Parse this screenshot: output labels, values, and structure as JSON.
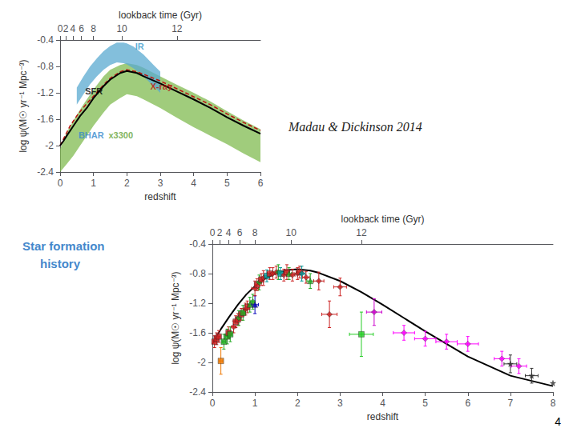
{
  "chart_data": [
    {
      "type": "line",
      "xlabel": "redshift",
      "ylabel": "log ψ(M☉ yr⁻¹ Mpc⁻³)",
      "xlim": [
        0,
        6
      ],
      "ylim": [
        -2.4,
        -0.4
      ],
      "xticks": [
        0,
        1,
        2,
        3,
        4,
        5,
        6
      ],
      "yticks": [
        -2.4,
        -2.0,
        -1.6,
        -1.2,
        -0.8,
        -0.4
      ],
      "x2label": "lookback time (Gyr)",
      "x2ticks": [
        0,
        {
          "value": 0.17,
          "label": "2"
        },
        {
          "value": 0.38,
          "label": "4"
        },
        {
          "value": 0.64,
          "label": "6"
        },
        {
          "value": 1.0,
          "label": "8"
        },
        {
          "value": 1.85,
          "label": "10"
        },
        {
          "value": 3.5,
          "label": "12"
        }
      ],
      "grid": false,
      "series": [
        {
          "type": "band",
          "color": "#80bb50",
          "x": [
            0.0,
            0.2,
            0.4,
            0.6,
            0.8,
            1.0,
            1.3,
            1.5,
            1.8,
            2.0,
            2.3,
            2.5,
            3.0,
            3.5,
            4.0,
            4.5,
            5.0,
            5.5,
            6.0
          ],
          "upper": [
            -2.05,
            -1.8,
            -1.62,
            -1.45,
            -1.3,
            -1.15,
            -0.95,
            -0.85,
            -0.78,
            -0.75,
            -0.78,
            -0.82,
            -0.95,
            -1.08,
            -1.2,
            -1.33,
            -1.48,
            -1.62,
            -1.75
          ],
          "lower": [
            -2.4,
            -2.28,
            -2.15,
            -2.0,
            -1.85,
            -1.7,
            -1.5,
            -1.38,
            -1.28,
            -1.22,
            -1.25,
            -1.3,
            -1.43,
            -1.58,
            -1.72,
            -1.85,
            -1.98,
            -2.12,
            -2.25
          ]
        },
        {
          "type": "band",
          "color": "#5aaad0",
          "x": [
            0.5,
            0.7,
            0.9,
            1.1,
            1.3,
            1.5,
            1.7,
            1.9,
            2.0,
            2.2,
            2.5,
            2.8,
            3.0
          ],
          "upper": [
            -1.12,
            -0.95,
            -0.8,
            -0.68,
            -0.57,
            -0.49,
            -0.44,
            -0.44,
            -0.45,
            -0.5,
            -0.62,
            -0.78,
            -0.88
          ],
          "lower": [
            -1.38,
            -1.22,
            -1.07,
            -0.95,
            -0.85,
            -0.78,
            -0.74,
            -0.75,
            -0.77,
            -0.83,
            -0.95,
            -1.1,
            -1.2
          ]
        },
        {
          "type": "line",
          "color": "#bb1111",
          "line_style": "dashed",
          "x": [
            0.0,
            0.3,
            0.5,
            0.7,
            1.0,
            1.3,
            1.5,
            1.8,
            2.0,
            2.3,
            2.5,
            3.0,
            3.5,
            4.0,
            4.5,
            5.0,
            5.5,
            6.0
          ],
          "values": [
            -2.0,
            -1.7,
            -1.55,
            -1.42,
            -1.25,
            -1.08,
            -0.98,
            -0.88,
            -0.85,
            -0.88,
            -0.92,
            -1.02,
            -1.14,
            -1.26,
            -1.38,
            -1.52,
            -1.65,
            -1.77
          ]
        },
        {
          "type": "line",
          "color": "black",
          "line_style": "solid",
          "x": [
            0.0,
            0.1,
            0.2,
            0.4,
            0.6,
            0.8,
            1.0,
            1.3,
            1.5,
            1.8,
            2.0,
            2.3,
            2.5,
            3.0,
            3.5,
            4.0,
            4.5,
            5.0,
            5.5,
            6.0
          ],
          "values": [
            -2.0,
            -1.93,
            -1.85,
            -1.7,
            -1.55,
            -1.43,
            -1.28,
            -1.1,
            -1.0,
            -0.9,
            -0.87,
            -0.9,
            -0.95,
            -1.06,
            -1.18,
            -1.3,
            -1.43,
            -1.57,
            -1.7,
            -1.82
          ]
        }
      ],
      "annotations": [
        {
          "text": "IR",
          "x": 2.25,
          "y": -0.6,
          "color": "#3399cc"
        },
        {
          "text": "SFR",
          "x": 0.75,
          "y": -1.28,
          "color": "black"
        },
        {
          "text": "X-ray",
          "x": 2.7,
          "y": -1.2,
          "color": "#bb1111"
        },
        {
          "text": "BHAR",
          "x": 0.55,
          "y": -1.95,
          "color": "#3388cc"
        },
        {
          "text": "x3300",
          "x": 1.45,
          "y": -1.95,
          "color": "#60a030"
        }
      ]
    },
    {
      "type": "scatter",
      "xlabel": "redshift",
      "ylabel": "log ψ(M☉ yr⁻¹ Mpc⁻³)",
      "xlim": [
        0,
        8
      ],
      "ylim": [
        -2.4,
        -0.4
      ],
      "xticks": [
        0,
        1,
        2,
        3,
        4,
        5,
        6,
        7,
        8
      ],
      "yticks": [
        -2.4,
        -2.0,
        -1.6,
        -1.2,
        -0.8,
        -0.4
      ],
      "x2label": "lookback time (Gyr)",
      "x2ticks": [
        0,
        {
          "value": 0.17,
          "label": "2"
        },
        {
          "value": 0.38,
          "label": "4"
        },
        {
          "value": 0.64,
          "label": "6"
        },
        {
          "value": 1.0,
          "label": "8"
        },
        {
          "value": 1.85,
          "label": "10"
        },
        {
          "value": 3.5,
          "label": "12"
        }
      ],
      "grid": false,
      "series": [
        {
          "type": "line",
          "color": "black",
          "line_style": "solid",
          "x": [
            0.0,
            0.1,
            0.2,
            0.4,
            0.6,
            0.8,
            1.0,
            1.2,
            1.5,
            1.8,
            2.0,
            2.3,
            2.5,
            3.0,
            3.5,
            4.0,
            4.5,
            5.0,
            6.0,
            7.0,
            7.5,
            8.0
          ],
          "values": [
            -1.75,
            -1.65,
            -1.55,
            -1.38,
            -1.22,
            -1.08,
            -0.97,
            -0.88,
            -0.79,
            -0.75,
            -0.74,
            -0.76,
            -0.79,
            -0.9,
            -1.05,
            -1.22,
            -1.4,
            -1.58,
            -1.92,
            -2.18,
            -2.25,
            -2.32
          ]
        },
        {
          "type": "scatter",
          "x": [
            0.05,
            0.1,
            0.15,
            0.2,
            0.27,
            0.35,
            0.38,
            0.42,
            0.5,
            0.55,
            0.6,
            0.62,
            0.68,
            0.72,
            0.78,
            0.82,
            0.88,
            0.95,
            1.0,
            1.0,
            1.05,
            1.1,
            1.15,
            1.2,
            1.28,
            1.35,
            1.42,
            1.5,
            1.55,
            1.6,
            1.68,
            1.75,
            1.8,
            1.88,
            2.0,
            2.05,
            2.1,
            2.2,
            2.3,
            2.5,
            2.75,
            3.0,
            3.5,
            3.8,
            4.5,
            5.0,
            5.5,
            6.0,
            6.8,
            7.0,
            7.2,
            7.5,
            8.0
          ],
          "values": [
            -1.72,
            -1.68,
            -1.65,
            -1.98,
            -1.72,
            -1.65,
            -1.6,
            -1.62,
            -1.52,
            -1.45,
            -1.42,
            -1.4,
            -1.35,
            -1.33,
            -1.28,
            -1.25,
            -1.22,
            -1.18,
            -1.22,
            -1.0,
            -0.95,
            -0.92,
            -0.88,
            -0.86,
            -0.83,
            -0.8,
            -0.8,
            -0.78,
            -0.78,
            -0.8,
            -0.82,
            -0.78,
            -0.8,
            -0.82,
            -0.8,
            -0.78,
            -0.8,
            -0.85,
            -0.9,
            -0.9,
            -1.35,
            -0.98,
            -1.62,
            -1.32,
            -1.6,
            -1.68,
            -1.72,
            -1.75,
            -1.95,
            -2.02,
            -2.05,
            -2.18,
            -2.28
          ],
          "xerr": [
            0.04,
            0.04,
            0.04,
            0.04,
            0.04,
            0.04,
            0.04,
            0.04,
            0.05,
            0.04,
            0.04,
            0.04,
            0.04,
            0.04,
            0.05,
            0.04,
            0.04,
            0.05,
            0.08,
            0.08,
            0.05,
            0.05,
            0.06,
            0.06,
            0.06,
            0.06,
            0.06,
            0.08,
            0.06,
            0.06,
            0.06,
            0.06,
            0.06,
            0.06,
            0.08,
            0.08,
            0.08,
            0.08,
            0.08,
            0.12,
            0.18,
            0.15,
            0.28,
            0.18,
            0.25,
            0.25,
            0.25,
            0.25,
            0.18,
            0.15,
            0.18,
            0.15,
            0.0
          ],
          "yerr": [
            0.08,
            0.08,
            0.08,
            0.18,
            0.1,
            0.1,
            0.08,
            0.1,
            0.08,
            0.08,
            0.08,
            0.1,
            0.08,
            0.1,
            0.08,
            0.08,
            0.1,
            0.1,
            0.12,
            0.1,
            0.08,
            0.1,
            0.08,
            0.1,
            0.08,
            0.08,
            0.08,
            0.08,
            0.1,
            0.08,
            0.08,
            0.1,
            0.08,
            0.08,
            0.08,
            0.08,
            0.1,
            0.08,
            0.1,
            0.12,
            0.18,
            0.12,
            0.3,
            0.18,
            0.1,
            0.1,
            0.1,
            0.1,
            0.1,
            0.12,
            0.1,
            0.1,
            0.0
          ],
          "colors": [
            "#cc2222",
            "#cc2222",
            "#cc2222",
            "#ee7700",
            "#22aa22",
            "#22aa22",
            "#cc2222",
            "#22aa22",
            "#cc2222",
            "#cc2222",
            "#cc2222",
            "#22aa22",
            "#cc2222",
            "#22aa22",
            "#cc2222",
            "#cc2222",
            "#22aa22",
            "#22aa22",
            "#0000bb",
            "#cc2222",
            "#cc2222",
            "#22aa22",
            "#cc2222",
            "#cc2222",
            "#009999",
            "#cc2222",
            "#cc2222",
            "#cc2222",
            "#22aa22",
            "#009999",
            "#cc2222",
            "#cc2222",
            "#22aa22",
            "#cc2222",
            "#cc2222",
            "#cc2222",
            "#009999",
            "#cc2222",
            "#22aa22",
            "#cc2222",
            "#cc2222",
            "#cc2222",
            "#22cc22",
            "#cc00cc",
            "#ff00ff",
            "#ff00ff",
            "#ff00ff",
            "#ff00ff",
            "#ff00ff",
            "#333333",
            "#ff00ff",
            "#333333",
            "#333333"
          ],
          "marker": [
            "square",
            "square",
            "square",
            "square",
            "square",
            "square",
            "square",
            "square",
            "diamond",
            "square",
            "square",
            "diamond",
            "square",
            "square",
            "diamond",
            "square",
            "triangle",
            "diamond",
            "triangle",
            "diamond",
            "square",
            "diamond",
            "square",
            "diamond",
            "square",
            "square",
            "diamond",
            "diamond",
            "diamond",
            "square",
            "diamond",
            "square",
            "triangle",
            "diamond",
            "diamond",
            "square",
            "diamond",
            "diamond",
            "triangle",
            "diamond",
            "diamond",
            "diamond",
            "square",
            "diamond",
            "diamond",
            "diamond",
            "diamond",
            "diamond",
            "diamond",
            "star",
            "diamond",
            "star",
            "star"
          ]
        }
      ]
    }
  ],
  "annotations": [
    {
      "text": "Madau & Dickinson 2014",
      "color": "#222222"
    },
    {
      "text": "Star formation",
      "color": "#4488cc"
    },
    {
      "text": "history",
      "color": "#4488cc"
    },
    {
      "text": "4",
      "color": "black"
    }
  ]
}
